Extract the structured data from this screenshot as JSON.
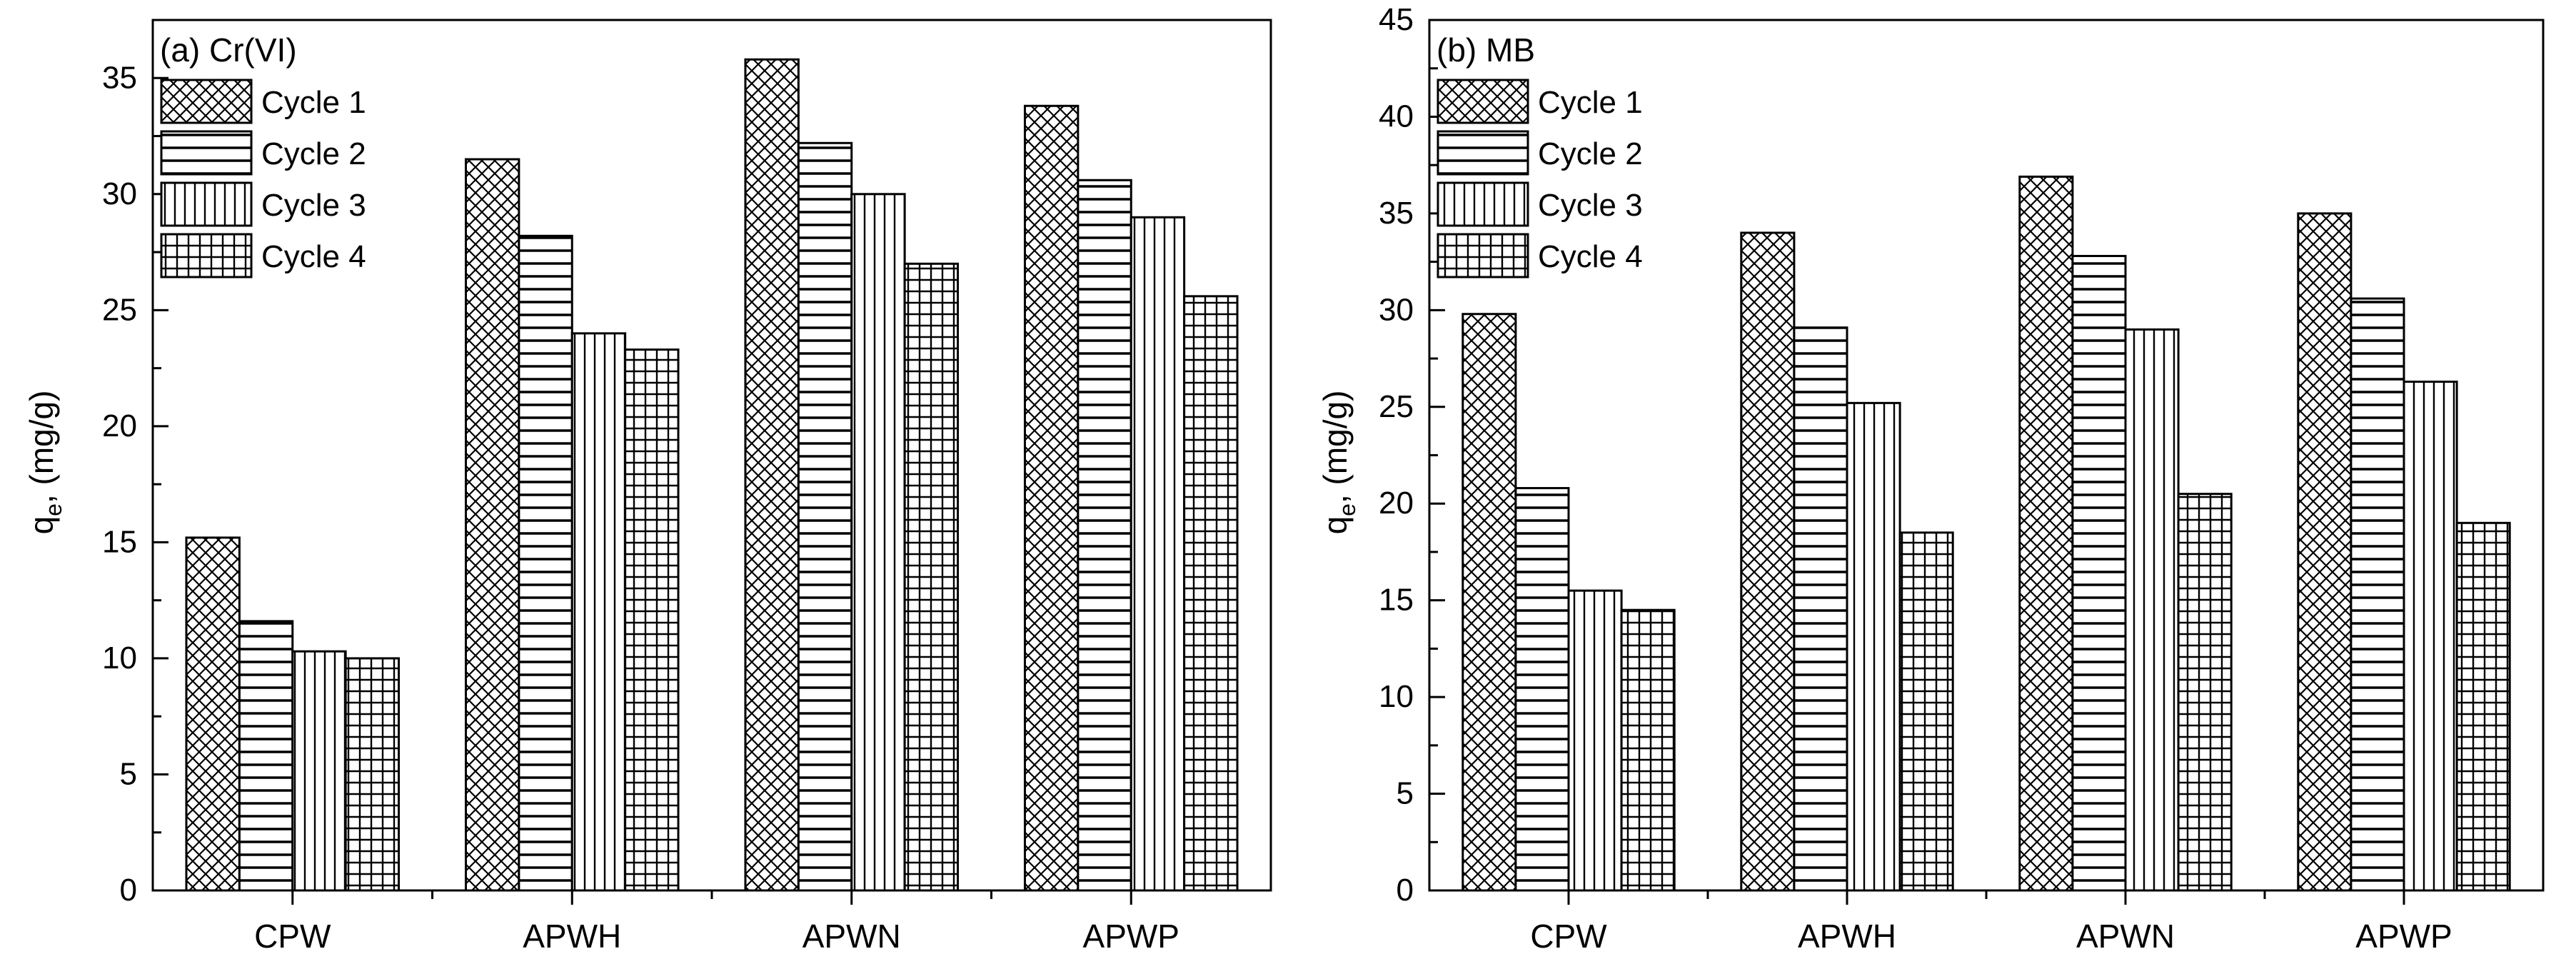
{
  "chart_data": [
    {
      "type": "bar",
      "panel_label": "(a) Cr(VI)",
      "ylabel_main": "q",
      "ylabel_sub": "e",
      "ylabel_rest": ", (mg/g)",
      "xlabel": "",
      "ylim": [
        0,
        37.5
      ],
      "yticks": [
        0,
        5,
        10,
        15,
        20,
        25,
        30,
        35
      ],
      "categories": [
        "CPW",
        "APWH",
        "APWN",
        "APWP"
      ],
      "legend_position": "top-left",
      "series": [
        {
          "name": "Cycle 1",
          "pattern": "crosshatch",
          "values": [
            15.2,
            31.5,
            35.8,
            33.8
          ]
        },
        {
          "name": "Cycle 2",
          "pattern": "horizontal",
          "values": [
            11.6,
            28.2,
            32.2,
            30.6
          ]
        },
        {
          "name": "Cycle 3",
          "pattern": "vertical",
          "values": [
            10.3,
            24.0,
            30.0,
            29.0
          ]
        },
        {
          "name": "Cycle 4",
          "pattern": "grid",
          "values": [
            10.0,
            23.3,
            27.0,
            25.6
          ]
        }
      ]
    },
    {
      "type": "bar",
      "panel_label": "(b) MB",
      "ylabel_main": "q",
      "ylabel_sub": "e",
      "ylabel_rest": ", (mg/g)",
      "xlabel": "",
      "ylim": [
        0,
        45
      ],
      "yticks": [
        0,
        5,
        10,
        15,
        20,
        25,
        30,
        35,
        40,
        45
      ],
      "categories": [
        "CPW",
        "APWH",
        "APWN",
        "APWP"
      ],
      "legend_position": "top-left",
      "series": [
        {
          "name": "Cycle 1",
          "pattern": "crosshatch",
          "values": [
            29.8,
            34.0,
            36.9,
            35.0
          ]
        },
        {
          "name": "Cycle 2",
          "pattern": "horizontal",
          "values": [
            20.8,
            29.1,
            32.8,
            30.6
          ]
        },
        {
          "name": "Cycle 3",
          "pattern": "vertical",
          "values": [
            15.5,
            25.2,
            29.0,
            26.3
          ]
        },
        {
          "name": "Cycle 4",
          "pattern": "grid",
          "values": [
            14.5,
            18.5,
            20.5,
            19.0
          ]
        }
      ]
    }
  ]
}
